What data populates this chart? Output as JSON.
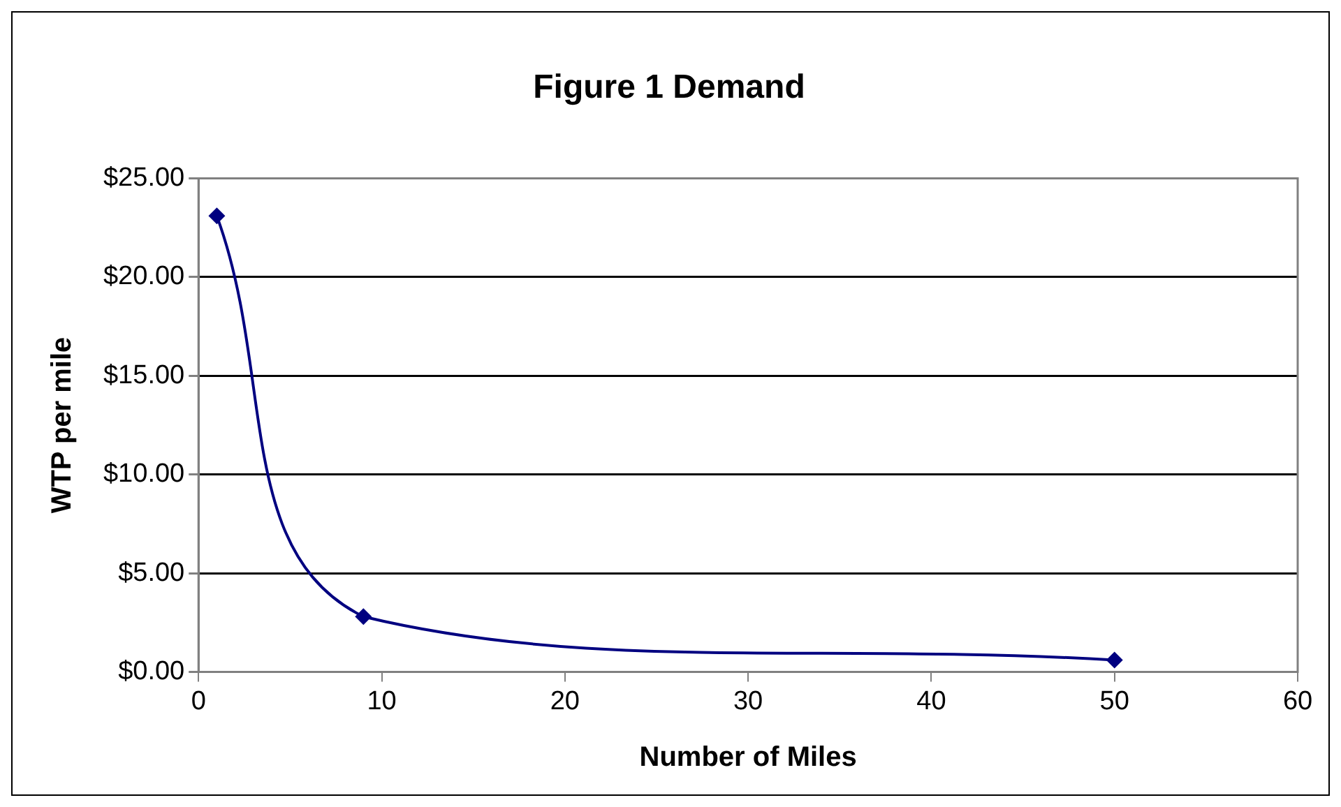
{
  "chart_data": {
    "type": "line",
    "title": "Figure 1 Demand",
    "xlabel": "Number of Miles",
    "ylabel": "WTP per mile",
    "x": [
      1,
      9,
      50
    ],
    "series": [
      {
        "color": "#000080",
        "values": [
          23.1,
          2.8,
          0.6
        ]
      }
    ],
    "xlim": [
      0,
      60
    ],
    "xticks": [
      0,
      10,
      20,
      30,
      40,
      50,
      60
    ],
    "ylim": [
      0,
      25
    ],
    "yticks": [
      {
        "value": 0,
        "label": "$0.00"
      },
      {
        "value": 5,
        "label": "$5.00"
      },
      {
        "value": 10,
        "label": "$10.00"
      },
      {
        "value": 15,
        "label": "$15.00"
      },
      {
        "value": 20,
        "label": "$20.00"
      },
      {
        "value": 25,
        "label": "$25.00"
      }
    ],
    "grid": "y",
    "legend": false,
    "marker": "diamond",
    "line_style": "solid"
  }
}
